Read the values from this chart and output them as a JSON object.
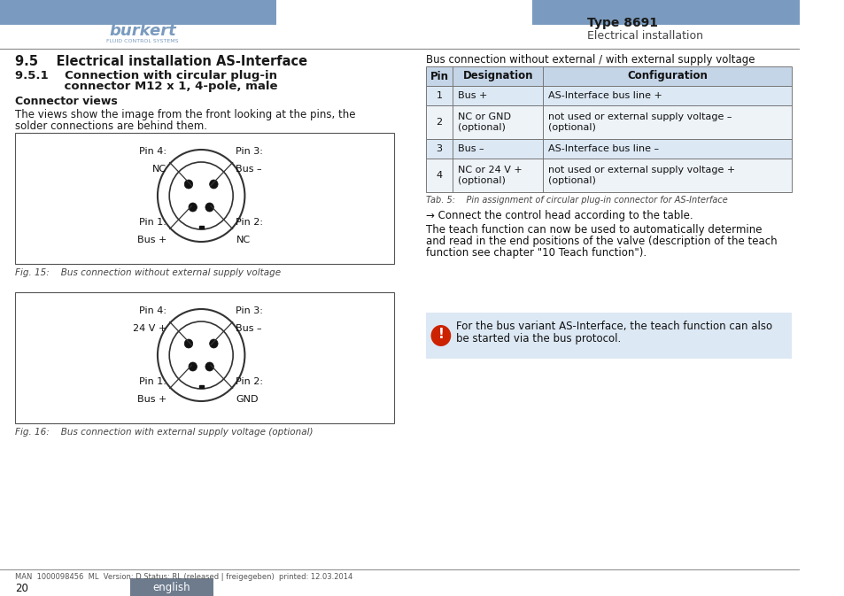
{
  "header_bar_color": "#7a9bbf",
  "logo_text": "bürkert",
  "logo_sub": "FLUID CONTROL SYSTEMS",
  "type_text": "Type 8691",
  "subtitle_text": "Electrical installation",
  "section_title": "9.5    Electrical installation AS-Interface",
  "connector_views_title": "Connector views",
  "fig15_caption": "Fig. 15:    Bus connection without external supply voltage",
  "fig16_caption": "Fig. 16:    Bus connection with external supply voltage (optional)",
  "fig1_pin4_label": "Pin 4:",
  "fig1_pin4_val": "NC",
  "fig1_pin3_label": "Pin 3:",
  "fig1_pin3_val": "Bus –",
  "fig1_pin1_label": "Pin 1:",
  "fig1_pin1_val": "Bus +",
  "fig1_pin2_label": "Pin 2:",
  "fig1_pin2_val": "NC",
  "fig2_pin4_label": "Pin 4:",
  "fig2_pin4_val": "24 V +",
  "fig2_pin3_label": "Pin 3:",
  "fig2_pin3_val": "Bus –",
  "fig2_pin1_label": "Pin 1:",
  "fig2_pin1_val": "Bus +",
  "fig2_pin2_label": "Pin 2:",
  "fig2_pin2_val": "GND",
  "right_title": "Bus connection without external / with external supply voltage",
  "table_headers": [
    "Pin",
    "Designation",
    "Configuration"
  ],
  "table_rows": [
    [
      "1",
      "Bus +",
      "AS-Interface bus line +"
    ],
    [
      "2",
      "NC or GND\n(optional)",
      "not used or external supply voltage –\n(optional)"
    ],
    [
      "3",
      "Bus –",
      "AS-Interface bus line –"
    ],
    [
      "4",
      "NC or 24 V +\n(optional)",
      "not used or external supply voltage +\n(optional)"
    ]
  ],
  "tab_caption": "Tab. 5:    Pin assignment of circular plug-in connector for AS-Interface",
  "arrow_text": "→ Connect the control head according to the table.",
  "teach_line1": "The teach function can now be used to automatically determine",
  "teach_line2": "and read in the end positions of the valve (description of the teach",
  "teach_line3": "function see chapter \"10 Teach function\").",
  "note_line1": "For the bus variant AS-Interface, the teach function can also",
  "note_line2": "be started via the bus protocol.",
  "footer_left": "MAN  1000098456  ML  Version: D Status: RL (released | freigegeben)  printed: 12.03.2014",
  "footer_page": "20",
  "footer_lang": "english",
  "footer_lang_bg": "#6d7b8d",
  "page_bg": "#ffffff",
  "text_color": "#1a1a1a",
  "table_header_bg": "#c5d5e8",
  "table_row_bg": "#dce8f4",
  "table_alt_bg": "#eef3f8",
  "note_bg": "#dce8f4",
  "note_icon_color": "#cc2200",
  "divider_color": "#888888"
}
